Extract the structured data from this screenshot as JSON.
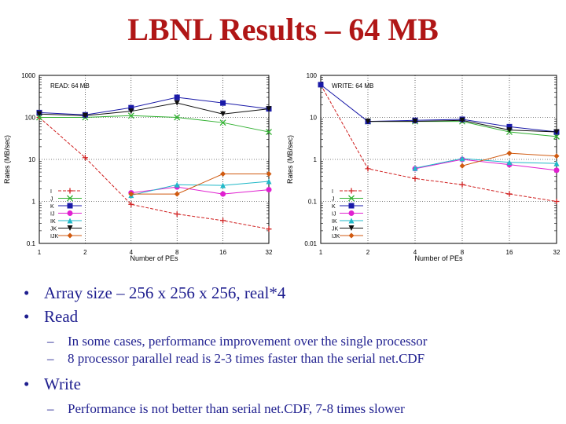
{
  "slide": {
    "title": "LBNL Results – 64 MB",
    "bullets": [
      {
        "text": "Array size – 256 x 256 x 256, real*4"
      },
      {
        "text": "Read",
        "sub": [
          "In some cases, performance improvement over the single processor",
          "8 processor parallel read is 2-3 times faster than the serial net.CDF"
        ]
      },
      {
        "text": "Write",
        "sub": [
          "Performance is not better than serial net.CDF, 7-8 times slower"
        ]
      }
    ]
  },
  "chart_data": [
    {
      "type": "line",
      "title": "READ: 64 MB",
      "xlabel": "Number of PEs",
      "ylabel": "Rates (MB/sec)",
      "yscale": "log",
      "xscale": "log2",
      "x": [
        1,
        2,
        4,
        8,
        16,
        32
      ],
      "x_ticks": [
        "1",
        "2",
        "4",
        "8",
        "16",
        "32"
      ],
      "y_ticks": [
        "0.1",
        "1",
        "10",
        "100",
        "1000"
      ],
      "ylim": [
        0.1,
        1000
      ],
      "legend_position": "bottom-left",
      "grid": true,
      "series": [
        {
          "name": "I",
          "color": "#d02020",
          "marker": "plus",
          "dashed": true,
          "values": [
            100,
            11,
            0.85,
            0.5,
            0.35,
            0.22
          ]
        },
        {
          "name": "J",
          "color": "#30b030",
          "marker": "cross",
          "values": [
            100,
            100,
            110,
            100,
            75,
            45
          ]
        },
        {
          "name": "K",
          "color": "#1a1aa8",
          "marker": "square",
          "values": [
            130,
            115,
            170,
            300,
            220,
            160
          ]
        },
        {
          "name": "IJ",
          "color": "#e020d0",
          "marker": "circle",
          "values": [
            null,
            null,
            1.6,
            2.2,
            1.5,
            1.9
          ]
        },
        {
          "name": "IK",
          "color": "#20b8c8",
          "marker": "triangle",
          "values": [
            null,
            null,
            1.4,
            2.5,
            2.4,
            3.0
          ]
        },
        {
          "name": "JK",
          "color": "#101010",
          "marker": "invtriangle",
          "values": [
            120,
            110,
            140,
            220,
            120,
            160
          ]
        },
        {
          "name": "IJK",
          "color": "#d05a10",
          "marker": "diamond",
          "values": [
            null,
            null,
            1.5,
            1.5,
            4.5,
            4.5
          ]
        }
      ]
    },
    {
      "type": "line",
      "title": "WRITE: 64 MB",
      "xlabel": "Number of PEs",
      "ylabel": "Rates (MB/sec)",
      "yscale": "log",
      "xscale": "log2",
      "x": [
        1,
        2,
        4,
        8,
        16,
        32
      ],
      "x_ticks": [
        "1",
        "2",
        "4",
        "8",
        "16",
        "32"
      ],
      "y_ticks": [
        "0.01",
        "0.1",
        "1",
        "10",
        "100"
      ],
      "ylim": [
        0.01,
        100
      ],
      "legend_position": "bottom-left",
      "grid": true,
      "series": [
        {
          "name": "I",
          "color": "#d02020",
          "marker": "plus",
          "dashed": true,
          "values": [
            60,
            0.6,
            0.35,
            0.25,
            0.15,
            0.1
          ]
        },
        {
          "name": "J",
          "color": "#30b030",
          "marker": "cross",
          "values": [
            null,
            8,
            8,
            8,
            4.5,
            3.5
          ]
        },
        {
          "name": "K",
          "color": "#1a1aa8",
          "marker": "square",
          "values": [
            60,
            8,
            8.5,
            9,
            6,
            4.5
          ]
        },
        {
          "name": "IJ",
          "color": "#e020d0",
          "marker": "circle",
          "values": [
            null,
            null,
            0.6,
            1.0,
            0.75,
            0.55
          ]
        },
        {
          "name": "IK",
          "color": "#20b8c8",
          "marker": "triangle",
          "values": [
            null,
            null,
            0.62,
            1.05,
            0.85,
            0.8
          ]
        },
        {
          "name": "JK",
          "color": "#101010",
          "marker": "invtriangle",
          "values": [
            null,
            8,
            8,
            8.5,
            5,
            4.5
          ]
        },
        {
          "name": "IJK",
          "color": "#d05a10",
          "marker": "diamond",
          "values": [
            null,
            null,
            null,
            0.7,
            1.4,
            1.2
          ]
        }
      ]
    }
  ]
}
